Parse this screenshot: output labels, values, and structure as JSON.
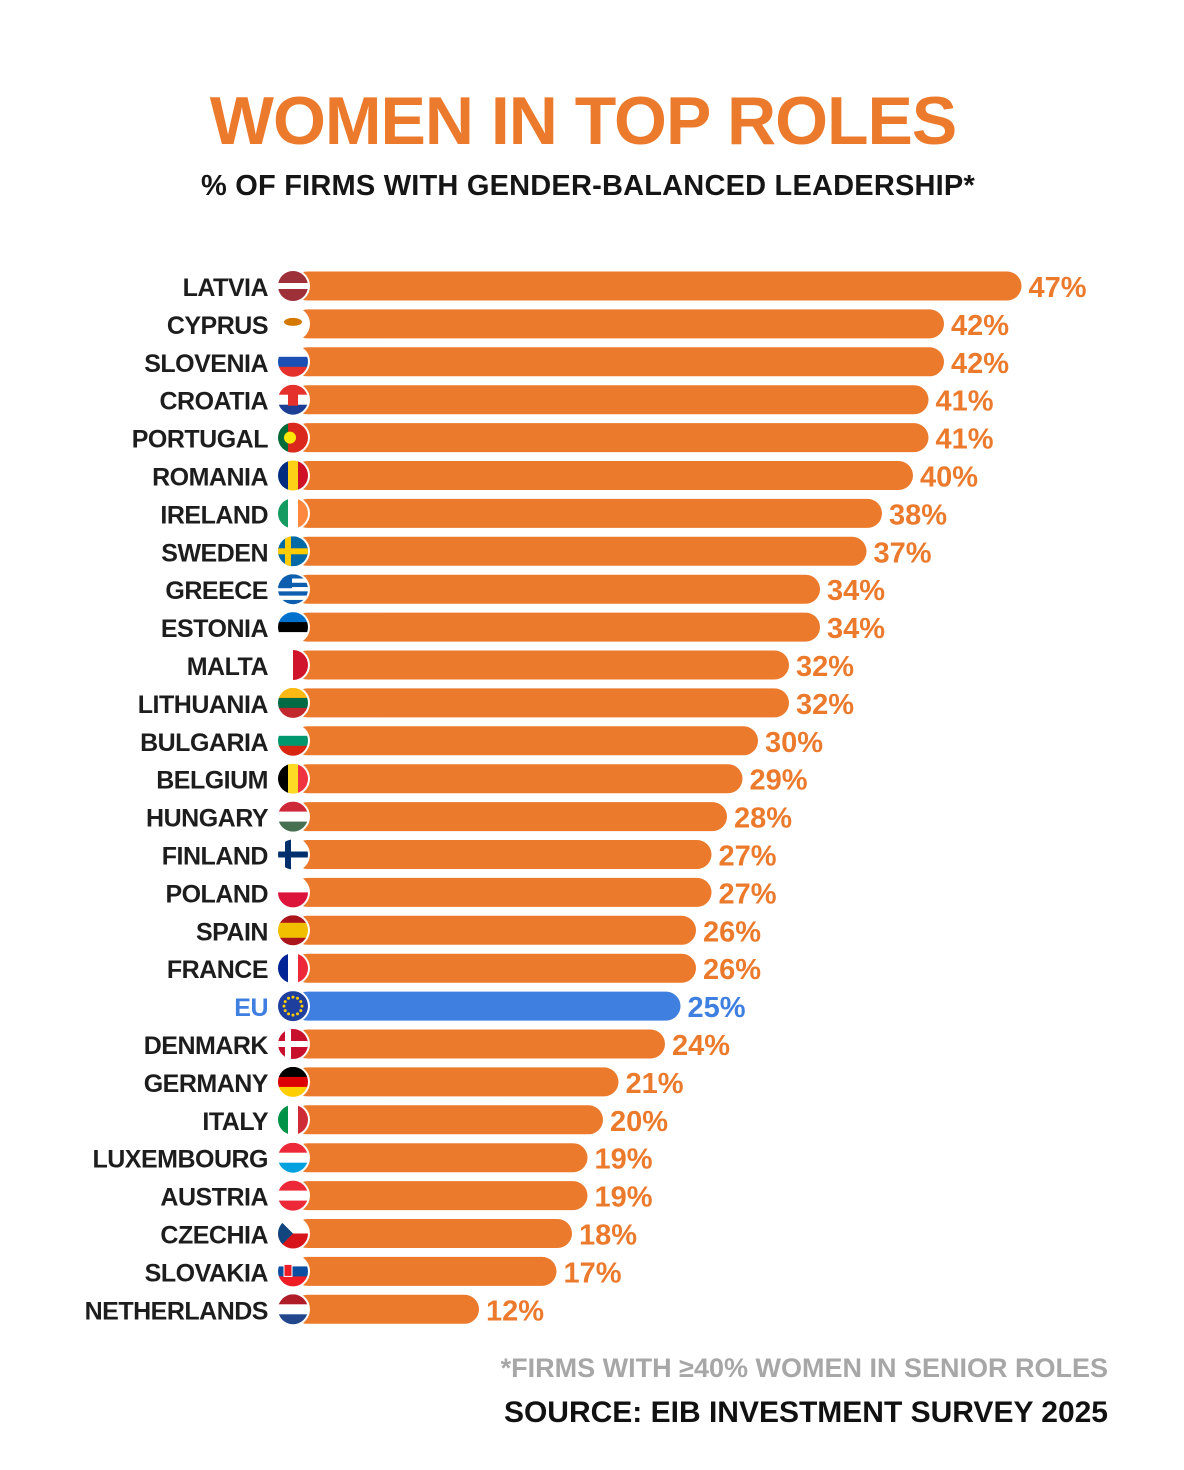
{
  "chart_data": {
    "type": "bar",
    "orientation": "horizontal",
    "title": "WOMEN IN TOP ROLES",
    "subtitle": "% OF FIRMS WITH GENDER-BALANCED LEADERSHIP*",
    "value_suffix": "%",
    "categories": [
      "LATVIA",
      "CYPRUS",
      "SLOVENIA",
      "CROATIA",
      "PORTUGAL",
      "ROMANIA",
      "IRELAND",
      "SWEDEN",
      "GREECE",
      "ESTONIA",
      "MALTA",
      "LITHUANIA",
      "BULGARIA",
      "BELGIUM",
      "HUNGARY",
      "FINLAND",
      "POLAND",
      "SPAIN",
      "FRANCE",
      "EU",
      "DENMARK",
      "GERMANY",
      "ITALY",
      "LUXEMBOURG",
      "AUSTRIA",
      "CZECHIA",
      "SLOVAKIA",
      "NETHERLANDS"
    ],
    "values": [
      47,
      42,
      42,
      41,
      41,
      40,
      38,
      37,
      34,
      34,
      32,
      32,
      30,
      29,
      28,
      27,
      27,
      26,
      26,
      25,
      24,
      21,
      20,
      19,
      19,
      18,
      17,
      12
    ],
    "value_labels": [
      "47%",
      "42%",
      "42%",
      "41%",
      "41%",
      "40%",
      "38%",
      "37%",
      "34%",
      "34%",
      "32%",
      "32%",
      "30%",
      "29%",
      "28%",
      "27%",
      "27%",
      "26%",
      "26%",
      "25%",
      "24%",
      "21%",
      "20%",
      "19%",
      "19%",
      "18%",
      "17%",
      "12%"
    ],
    "highlight": "EU",
    "colors": {
      "bar": "#ec7a2c",
      "highlight": "#3e7fe0",
      "label": "#1d1d1d",
      "value_label": "#ec7a2c"
    },
    "flags": [
      "latvia-flag-icon",
      "cyprus-flag-icon",
      "slovenia-flag-icon",
      "croatia-flag-icon",
      "portugal-flag-icon",
      "romania-flag-icon",
      "ireland-flag-icon",
      "sweden-flag-icon",
      "greece-flag-icon",
      "estonia-flag-icon",
      "malta-flag-icon",
      "lithuania-flag-icon",
      "bulgaria-flag-icon",
      "belgium-flag-icon",
      "hungary-flag-icon",
      "finland-flag-icon",
      "poland-flag-icon",
      "spain-flag-icon",
      "france-flag-icon",
      "eu-flag-icon",
      "denmark-flag-icon",
      "germany-flag-icon",
      "italy-flag-icon",
      "luxembourg-flag-icon",
      "austria-flag-icon",
      "czechia-flag-icon",
      "slovakia-flag-icon",
      "netherlands-flag-icon"
    ]
  },
  "footer": {
    "footnote": "*FIRMS WITH ≥40% WOMEN IN SENIOR ROLES",
    "source": "SOURCE: EIB INVESTMENT SURVEY 2025"
  }
}
